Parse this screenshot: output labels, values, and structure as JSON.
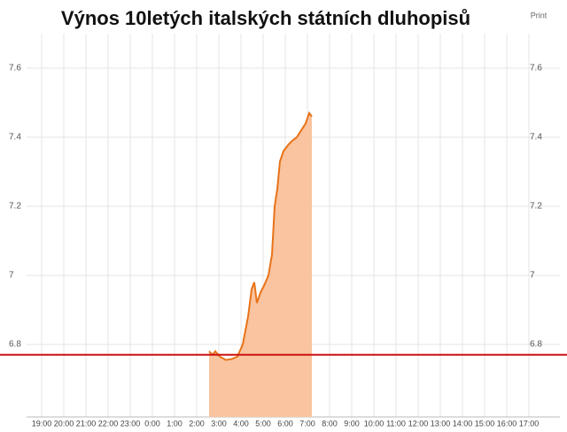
{
  "chart_data": {
    "type": "area",
    "title": "Výnos 10letých italských státních dluhopisů",
    "print_label": "Print",
    "color": "#e8731a",
    "fill_color": "#f9c49f",
    "x": [
      26.56,
      26.72,
      26.84,
      27.04,
      27.32,
      27.6,
      27.84,
      28.08,
      28.32,
      28.48,
      28.6,
      28.72,
      28.88,
      29.04,
      29.24,
      29.4,
      29.52,
      29.64,
      29.76,
      29.92,
      30.16,
      30.32,
      30.52,
      30.72,
      30.92,
      31.08,
      31.2
    ],
    "values": [
      6.78,
      6.77,
      6.78,
      6.765,
      6.755,
      6.758,
      6.765,
      6.8,
      6.88,
      6.96,
      6.98,
      6.92,
      6.95,
      6.97,
      7.0,
      7.06,
      7.2,
      7.25,
      7.33,
      7.36,
      7.38,
      7.39,
      7.4,
      7.42,
      7.44,
      7.47,
      7.46
    ],
    "reference_line": {
      "value": 6.77,
      "color": "#cc1111"
    },
    "xlim": [
      18.32,
      42.4
    ],
    "ylim": [
      6.59,
      7.7
    ],
    "yticks": [
      {
        "value": 6.8,
        "label": "6.8"
      },
      7,
      {
        "value": 7.2,
        "label": "7.2"
      },
      {
        "value": 7.4,
        "label": "7.4"
      },
      {
        "value": 7.6,
        "label": "7.6"
      }
    ],
    "xticks": [
      {
        "value": 19,
        "label": "19:00"
      },
      {
        "value": 20,
        "label": "20:00"
      },
      {
        "value": 21,
        "label": "21:00"
      },
      {
        "value": 22,
        "label": "22:00"
      },
      {
        "value": 23,
        "label": "23:00"
      },
      {
        "value": 24,
        "label": "0:00"
      },
      {
        "value": 25,
        "label": "1:00"
      },
      {
        "value": 26,
        "label": "2:00"
      },
      {
        "value": 27,
        "label": "3:00"
      },
      {
        "value": 28,
        "label": "4:00"
      },
      {
        "value": 29,
        "label": "5:00"
      },
      {
        "value": 30,
        "label": "6:00"
      },
      {
        "value": 31,
        "label": "7:00"
      },
      {
        "value": 32,
        "label": "8:00"
      },
      {
        "value": 33,
        "label": "9:00"
      },
      {
        "value": 34,
        "label": "10:00"
      },
      {
        "value": 35,
        "label": "11:00"
      },
      {
        "value": 36,
        "label": "12:00"
      },
      {
        "value": 37,
        "label": "13:00"
      },
      {
        "value": 38,
        "label": "14:00"
      },
      {
        "value": 39,
        "label": "15:00"
      },
      {
        "value": 40,
        "label": "16:00"
      },
      {
        "value": 41,
        "label": "17:00"
      }
    ],
    "grid": true
  }
}
